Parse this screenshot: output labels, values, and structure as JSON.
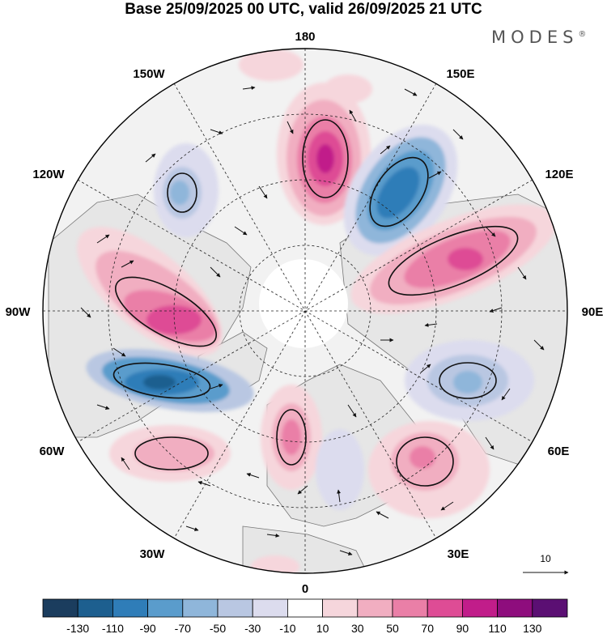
{
  "title": "Base 25/09/2025 00 UTC, valid 26/09/2025 21 UTC",
  "brand": {
    "name": "MODES",
    "mark": "®"
  },
  "longitude_labels": {
    "top": "180",
    "top_left": "150W",
    "top_right": "150E",
    "upper_left": "120W",
    "upper_right": "120E",
    "left": "90W",
    "right": "90E",
    "lower_left": "60W",
    "lower_right": "60E",
    "bottom_left": "30W",
    "bottom_right": "30E",
    "bottom": "0"
  },
  "reference_vector": {
    "label": "10"
  },
  "colorbar": {
    "colors": [
      "#1b3d5e",
      "#1d5f8f",
      "#2f7db8",
      "#5a9ccc",
      "#8fb6da",
      "#b9c7e2",
      "#dcdcee",
      "#ffffff",
      "#f6d6dc",
      "#f1aec1",
      "#ea7fa7",
      "#de4c95",
      "#c11d8a",
      "#8e0d7d",
      "#5b0f73"
    ],
    "labels": [
      "-130",
      "-110",
      "-90",
      "-70",
      "-50",
      "-30",
      "-10",
      "10",
      "30",
      "50",
      "70",
      "90",
      "110",
      "130"
    ]
  },
  "colors": {
    "land": "#e8e8e8",
    "ocean": "#f2f2f2",
    "coast": "#6a6a6a"
  }
}
